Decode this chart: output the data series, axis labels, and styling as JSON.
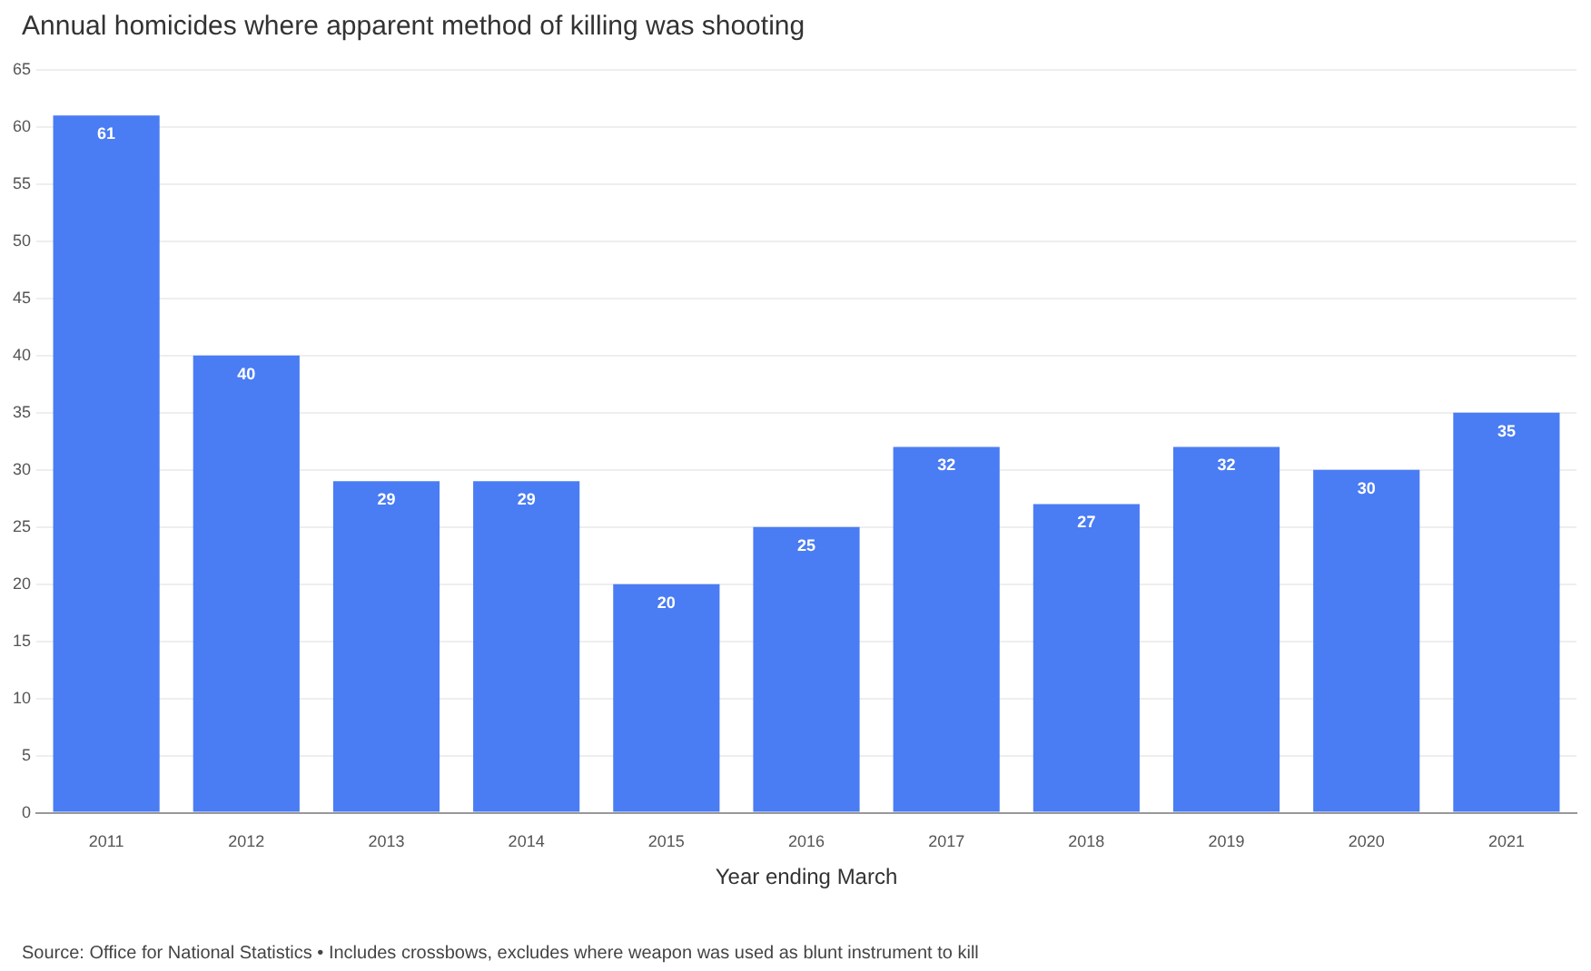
{
  "chart_data": {
    "type": "bar",
    "title": "Annual homicides where apparent method of killing was shooting",
    "xlabel": "Year ending March",
    "annotations": [
      "Source: Office for National Statistics • Includes crossbows, excludes where weapon was used as blunt instrument to kill"
    ],
    "categories": [
      "2011",
      "2012",
      "2013",
      "2014",
      "2015",
      "2016",
      "2017",
      "2018",
      "2019",
      "2020",
      "2021"
    ],
    "values": [
      61,
      40,
      29,
      29,
      20,
      25,
      32,
      27,
      32,
      30,
      35
    ],
    "color": "#4a7cf3",
    "ylim": [
      0,
      65
    ],
    "yticks": [
      0,
      5,
      10,
      15,
      20,
      25,
      30,
      35,
      40,
      45,
      50,
      55,
      60,
      65
    ],
    "grid": "y",
    "data_labels": true,
    "legend": false
  }
}
